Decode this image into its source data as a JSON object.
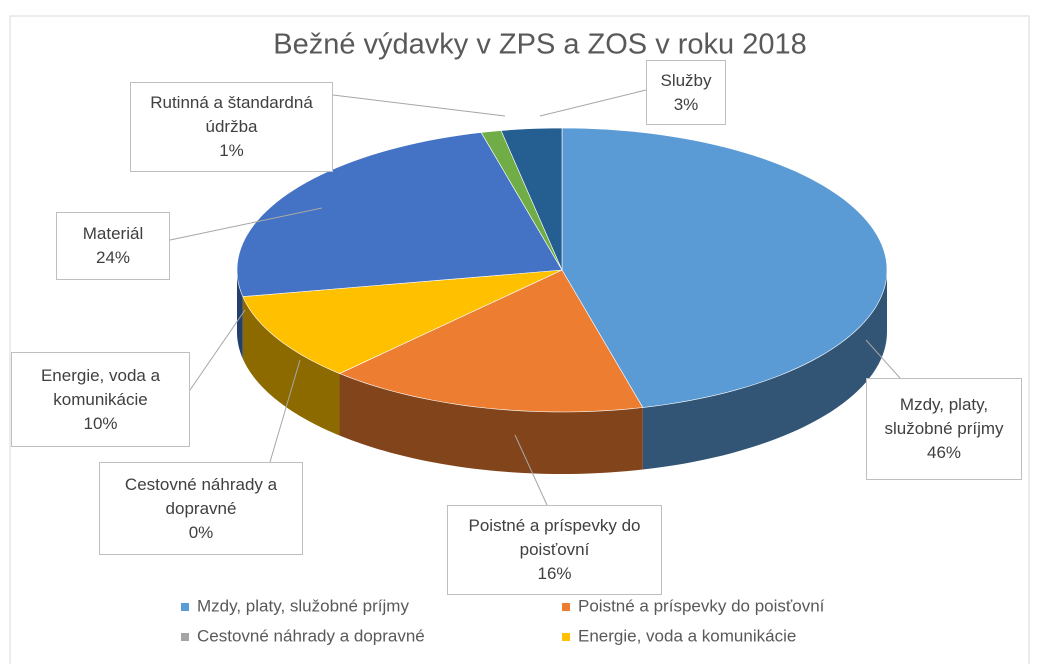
{
  "chart_data": {
    "type": "pie",
    "title": "Bežné výdavky v ZPS a ZOS v roku 2018",
    "categories": [
      "Mzdy, platy, služobné príjmy",
      "Poistné a príspevky do poisťovní",
      "Cestovné náhrady a dopravné",
      "Energie, voda a komunikácie",
      "Materiál",
      "Rutinná a štandardná údržba",
      "Služby"
    ],
    "values": [
      46,
      16,
      0,
      10,
      24,
      1,
      3
    ],
    "value_labels": [
      "46%",
      "16%",
      "0%",
      "10%",
      "24%",
      "1%",
      "3%"
    ],
    "colors": [
      "#5b9bd5",
      "#ed7d31",
      "#a5a5a5",
      "#ffc000",
      "#4472c4",
      "#70ad47",
      "#255e91"
    ],
    "legend": "bottom"
  }
}
